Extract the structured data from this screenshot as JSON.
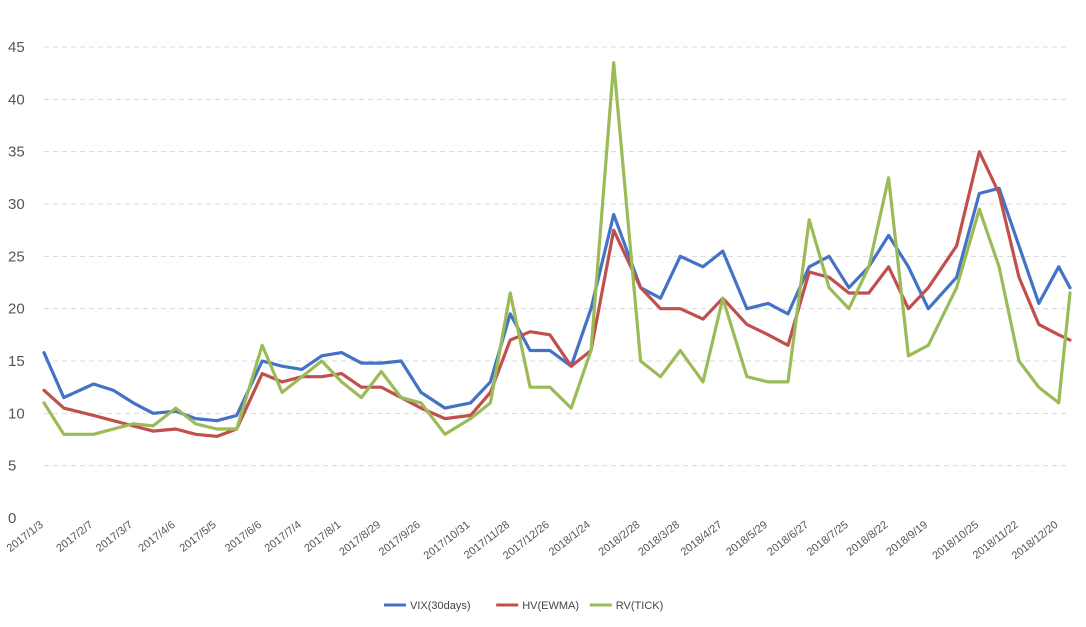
{
  "chart_data": {
    "type": "line",
    "title": "",
    "xlabel": "",
    "ylabel": "",
    "ylim": [
      0,
      45
    ],
    "yticks": [
      0,
      5,
      10,
      15,
      20,
      25,
      30,
      35,
      40,
      45
    ],
    "grid": true,
    "legend_position": "bottom-center",
    "x_tick_labels": [
      "2017/1/3",
      "2017/2/7",
      "2017/3/7",
      "2017/4/6",
      "2017/5/5",
      "2017/6/6",
      "2017/7/4",
      "2017/8/1",
      "2017/8/29",
      "2017/9/26",
      "2017/10/31",
      "2017/11/28",
      "2017/12/26",
      "2018/1/24",
      "2018/2/28",
      "2018/3/28",
      "2018/4/27",
      "2018/5/29",
      "2018/6/27",
      "2018/7/25",
      "2018/8/22",
      "2018/9/19",
      "2018/10/25",
      "2018/11/22",
      "2018/12/20"
    ],
    "x": [
      "2017/1/3",
      "2017/1/17",
      "2017/2/7",
      "2017/2/21",
      "2017/3/7",
      "2017/3/21",
      "2017/4/6",
      "2017/4/20",
      "2017/5/5",
      "2017/5/19",
      "2017/6/6",
      "2017/6/20",
      "2017/7/4",
      "2017/7/18",
      "2017/8/1",
      "2017/8/15",
      "2017/8/29",
      "2017/9/12",
      "2017/9/26",
      "2017/10/13",
      "2017/10/31",
      "2017/11/14",
      "2017/11/28",
      "2017/12/12",
      "2017/12/26",
      "2018/1/10",
      "2018/1/24",
      "2018/2/9",
      "2018/2/28",
      "2018/3/14",
      "2018/3/28",
      "2018/4/13",
      "2018/4/27",
      "2018/5/14",
      "2018/5/29",
      "2018/6/12",
      "2018/6/27",
      "2018/7/11",
      "2018/7/25",
      "2018/8/8",
      "2018/8/22",
      "2018/9/5",
      "2018/9/19",
      "2018/10/9",
      "2018/10/25",
      "2018/11/8",
      "2018/11/22",
      "2018/12/6",
      "2018/12/20",
      "2018/12/28"
    ],
    "series": [
      {
        "name": "VIX(30days)",
        "color": "#4472c4",
        "values": [
          15.8,
          11.5,
          12.8,
          12.2,
          11.0,
          10.0,
          10.2,
          9.5,
          9.3,
          9.8,
          15.0,
          14.5,
          14.2,
          15.5,
          15.8,
          14.8,
          14.8,
          15.0,
          12.0,
          10.5,
          11.0,
          13.0,
          19.5,
          16.0,
          16.0,
          14.5,
          20.0,
          29.0,
          22.0,
          21.0,
          25.0,
          24.0,
          25.5,
          20.0,
          20.5,
          19.5,
          24.0,
          25.0,
          22.0,
          24.0,
          27.0,
          24.0,
          20.0,
          23.0,
          31.0,
          31.5,
          26.0,
          20.5,
          24.0,
          22.0
        ]
      },
      {
        "name": "HV(EWMA)",
        "color": "#c0504d",
        "values": [
          12.2,
          10.5,
          9.8,
          9.3,
          8.8,
          8.3,
          8.5,
          8.0,
          7.8,
          8.5,
          13.8,
          13.0,
          13.5,
          13.5,
          13.8,
          12.5,
          12.5,
          11.5,
          10.5,
          9.5,
          9.8,
          12.0,
          17.0,
          17.8,
          17.5,
          14.5,
          16.0,
          27.5,
          22.0,
          20.0,
          20.0,
          19.0,
          21.0,
          18.5,
          17.5,
          16.5,
          23.5,
          23.0,
          21.5,
          21.5,
          24.0,
          20.0,
          22.0,
          26.0,
          35.0,
          31.0,
          23.0,
          18.5,
          17.5,
          17.0
        ]
      },
      {
        "name": "RV(TICK)",
        "color": "#9bbb59",
        "values": [
          11.0,
          8.0,
          8.0,
          8.5,
          9.0,
          8.8,
          10.5,
          9.0,
          8.5,
          8.5,
          16.5,
          12.0,
          13.5,
          15.0,
          13.0,
          11.5,
          14.0,
          11.5,
          11.0,
          8.0,
          9.5,
          11.0,
          21.5,
          12.5,
          12.5,
          10.5,
          16.0,
          43.5,
          15.0,
          13.5,
          16.0,
          13.0,
          21.0,
          13.5,
          13.0,
          13.0,
          28.5,
          22.0,
          20.0,
          24.0,
          32.5,
          15.5,
          16.5,
          22.0,
          29.5,
          24.0,
          15.0,
          12.5,
          11.0,
          21.5
        ]
      }
    ]
  }
}
